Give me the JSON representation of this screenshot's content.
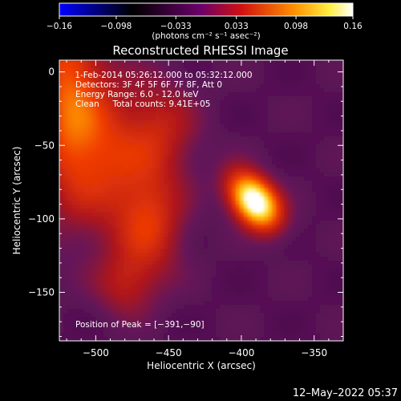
{
  "chart_data": {
    "type": "heatmap",
    "title": "Reconstructed RHESSI Image",
    "xlabel": "Heliocentric X (arcsec)",
    "ylabel": "Heliocentric Y (arcsec)",
    "xlim": [
      -525,
      -330
    ],
    "ylim": [
      -183,
      8
    ],
    "x_ticks": [
      -500,
      -450,
      -400,
      -350
    ],
    "x_tick_labels": [
      "−500",
      "−450",
      "−400",
      "−350"
    ],
    "y_ticks": [
      0,
      -50,
      -100,
      -150
    ],
    "y_tick_labels": [
      "0",
      "−50",
      "−100",
      "−150"
    ],
    "colorbar": {
      "range": [
        -0.16,
        0.16
      ],
      "ticks": [
        -0.16,
        -0.098,
        -0.033,
        0.033,
        0.098,
        0.16
      ],
      "tick_labels": [
        "−0.16",
        "−0.098",
        "−0.033",
        "0.033",
        "0.098",
        "0.16"
      ],
      "units": "(photons cm⁻² s⁻¹ asec⁻²)",
      "colors": [
        "#0000ff",
        "#000000",
        "#7a007a",
        "#ff2000",
        "#ffa500",
        "#ffffff"
      ]
    },
    "annotations": [
      " 1-Feb-2014 05:26:12.000 to 05:32:12.000",
      "Detectors: 3F 4F 5F 6F 7F 8F, Att 0",
      "Energy Range: 6.0 - 12.0 keV",
      "Clean     Total counts: 9.41E+05"
    ],
    "peak_label": "Position of Peak = [−391,−90]",
    "peak": {
      "x": -391,
      "y": -90,
      "value": 0.16
    },
    "sources": [
      {
        "name": "peak",
        "x": -391,
        "y": -88,
        "sx": 10,
        "sy": 15,
        "rot": 40,
        "amp": 0.16
      },
      {
        "name": "upper-left",
        "x": -520,
        "y": -10,
        "sx": 16,
        "sy": 55,
        "rot": 0,
        "amp": 0.06
      },
      {
        "name": "left-mid",
        "x": -495,
        "y": -55,
        "sx": 22,
        "sy": 40,
        "rot": 10,
        "amp": 0.055
      },
      {
        "name": "center-mid",
        "x": -462,
        "y": -105,
        "sx": 16,
        "sy": 25,
        "rot": 0,
        "amp": 0.05
      },
      {
        "name": "lower-left",
        "x": -480,
        "y": -145,
        "sx": 14,
        "sy": 15,
        "rot": 0,
        "amp": 0.035
      },
      {
        "name": "center-top",
        "x": -455,
        "y": -40,
        "sx": 18,
        "sy": 25,
        "rot": 0,
        "amp": 0.04
      }
    ],
    "background_level": 0.02,
    "grid": false
  },
  "timestamp": "12–May–2022 05:37"
}
